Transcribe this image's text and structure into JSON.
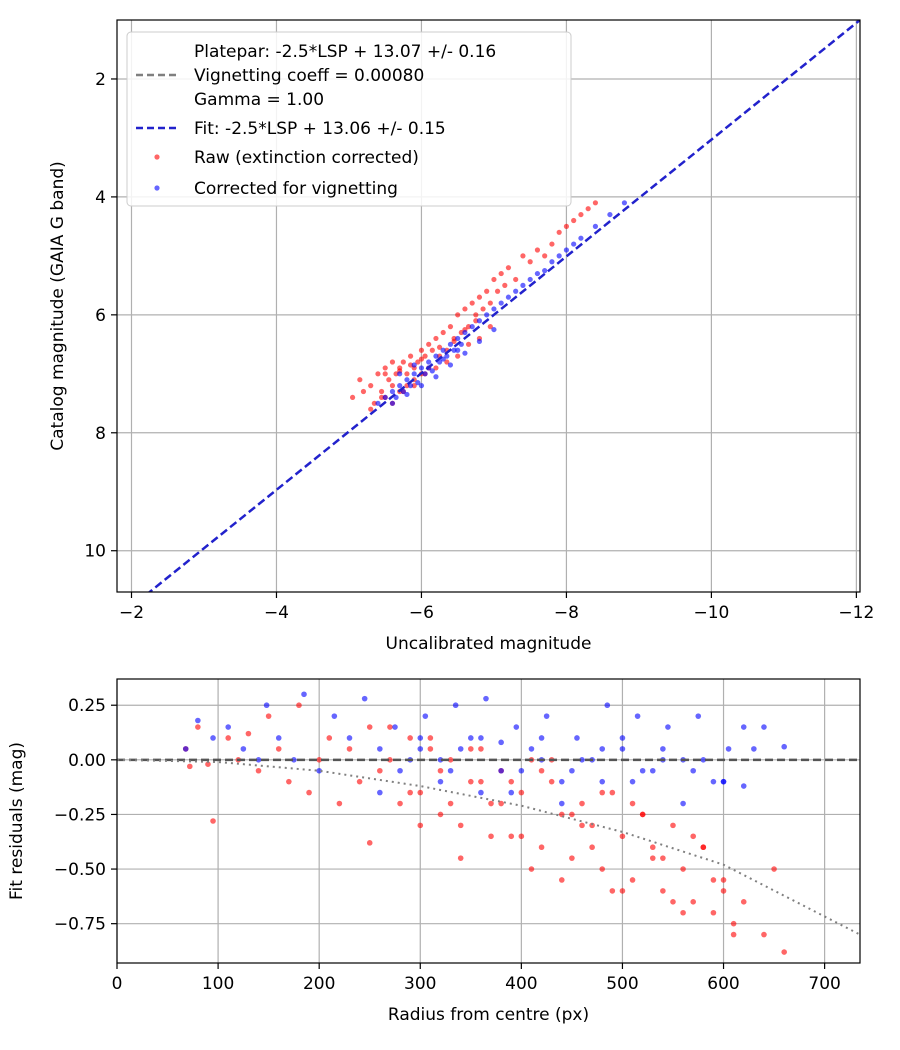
{
  "chart_data": [
    {
      "type": "scatter",
      "xlabel": "Uncalibrated magnitude",
      "ylabel": "Catalog magnitude (GAIA G band)",
      "xlim": [
        -1.8,
        -12.05
      ],
      "ylim": [
        10.7,
        1.0
      ],
      "x_inverted": true,
      "y_inverted": true,
      "xticks": [
        -2,
        -4,
        -6,
        -8,
        -10,
        -12
      ],
      "xtick_labels": [
        "−2",
        "−4",
        "−6",
        "−8",
        "−10",
        "−12"
      ],
      "yticks": [
        2,
        4,
        6,
        8,
        10
      ],
      "ytick_labels": [
        "2",
        "4",
        "6",
        "8",
        "10"
      ],
      "grid": true,
      "legend_position": "top-left",
      "legend": [
        {
          "name": "Platepar: -2.5*LSP + 13.07 +/- 0.16\nVignetting coeff = 0.00080\nGamma = 1.00",
          "style": "dashed",
          "color": "#7f7f7f"
        },
        {
          "name": "Fit: -2.5*LSP + 13.06 +/- 0.15",
          "style": "dashed",
          "color": "#2222cc"
        },
        {
          "name": "Raw (extinction corrected)",
          "style": "marker",
          "color": "#ff0000"
        },
        {
          "name": "Corrected for vignetting",
          "style": "marker",
          "color": "#0000ff"
        }
      ],
      "series": [
        {
          "kind": "line",
          "style": "dashed",
          "color": "#2222cc",
          "x": [
            -2.2,
            -12.05
          ],
          "y": [
            10.75,
            1.0
          ]
        },
        {
          "kind": "scatter",
          "color": "#ff0000",
          "x": [
            -5.05,
            -5.15,
            -5.2,
            -5.3,
            -5.35,
            -5.4,
            -5.45,
            -5.5,
            -5.5,
            -5.55,
            -5.6,
            -5.6,
            -5.65,
            -5.7,
            -5.7,
            -5.75,
            -5.8,
            -5.8,
            -5.85,
            -5.9,
            -5.9,
            -5.95,
            -6.0,
            -6.0,
            -6.05,
            -6.1,
            -6.1,
            -6.15,
            -6.2,
            -6.25,
            -6.3,
            -6.35,
            -6.4,
            -6.45,
            -6.5,
            -6.55,
            -6.6,
            -6.65,
            -6.7,
            -6.75,
            -6.8,
            -6.85,
            -6.9,
            -6.95,
            -7.0,
            -7.05,
            -7.1,
            -7.15,
            -7.2,
            -7.3,
            -7.4,
            -7.5,
            -7.6,
            -7.7,
            -7.8,
            -7.9,
            -8.0,
            -8.1,
            -8.2,
            -8.3,
            -8.4,
            -5.3,
            -5.45,
            -5.6,
            -5.75,
            -5.9,
            -6.05,
            -6.2,
            -6.35,
            -6.5,
            -6.65,
            -6.8,
            -6.95,
            -5.5,
            -5.7,
            -5.85,
            -6.0,
            -6.25,
            -6.45,
            -6.6,
            -6.75
          ],
          "y": [
            7.4,
            7.1,
            7.3,
            7.2,
            7.5,
            7.0,
            7.3,
            6.9,
            7.4,
            7.1,
            6.8,
            7.2,
            7.0,
            6.9,
            7.3,
            6.8,
            7.0,
            7.2,
            6.7,
            6.9,
            7.1,
            6.8,
            6.6,
            7.0,
            6.7,
            6.5,
            6.9,
            6.6,
            6.4,
            6.7,
            6.3,
            6.6,
            6.2,
            6.4,
            6.0,
            6.3,
            5.9,
            6.2,
            5.8,
            6.0,
            5.7,
            5.9,
            5.6,
            5.8,
            5.4,
            5.6,
            5.3,
            5.5,
            5.2,
            5.4,
            5.0,
            5.1,
            4.9,
            5.0,
            4.8,
            4.6,
            4.5,
            4.4,
            4.3,
            4.2,
            4.1,
            7.6,
            7.4,
            7.5,
            7.3,
            7.2,
            7.0,
            6.9,
            6.8,
            6.7,
            6.5,
            6.4,
            6.2,
            7.0,
            6.95,
            6.85,
            6.75,
            6.55,
            6.45,
            6.25,
            6.1
          ]
        },
        {
          "kind": "scatter",
          "color": "#0000ff",
          "x": [
            -5.4,
            -5.5,
            -5.6,
            -5.65,
            -5.7,
            -5.75,
            -5.8,
            -5.85,
            -5.9,
            -5.95,
            -6.0,
            -6.05,
            -6.1,
            -6.15,
            -6.2,
            -6.25,
            -6.3,
            -6.35,
            -6.4,
            -6.45,
            -6.5,
            -6.55,
            -6.6,
            -6.7,
            -6.8,
            -6.9,
            -7.0,
            -7.1,
            -7.2,
            -7.3,
            -7.4,
            -7.5,
            -7.6,
            -7.7,
            -7.8,
            -7.9,
            -8.0,
            -8.1,
            -8.2,
            -8.4,
            -8.6,
            -8.8,
            -5.6,
            -5.8,
            -6.0,
            -6.2,
            -6.4,
            -6.6,
            -6.8,
            -7.0,
            -5.7,
            -5.9,
            -6.1,
            -6.3,
            -6.5
          ],
          "y": [
            7.5,
            7.4,
            7.3,
            7.4,
            7.2,
            7.3,
            7.1,
            7.2,
            7.0,
            7.15,
            6.9,
            7.0,
            6.8,
            6.95,
            6.7,
            6.8,
            6.6,
            6.7,
            6.5,
            6.6,
            6.4,
            6.5,
            6.3,
            6.2,
            6.1,
            6.0,
            5.9,
            5.8,
            5.7,
            5.6,
            5.5,
            5.4,
            5.3,
            5.25,
            5.1,
            5.0,
            4.9,
            4.8,
            4.7,
            4.5,
            4.3,
            4.1,
            7.5,
            7.35,
            7.2,
            7.05,
            6.85,
            6.65,
            6.45,
            6.25,
            7.0,
            6.85,
            6.9,
            6.75,
            6.6
          ]
        }
      ]
    },
    {
      "type": "scatter",
      "xlabel": "Radius from centre (px)",
      "ylabel": "Fit residuals (mag)",
      "xlim": [
        0,
        735
      ],
      "ylim": [
        -0.93,
        0.37
      ],
      "xticks": [
        0,
        100,
        200,
        300,
        400,
        500,
        600,
        700
      ],
      "xtick_labels": [
        "0",
        "100",
        "200",
        "300",
        "400",
        "500",
        "600",
        "700"
      ],
      "yticks": [
        0.25,
        0.0,
        -0.25,
        -0.5,
        -0.75
      ],
      "ytick_labels": [
        "0.25",
        "0.00",
        "−0.25",
        "−0.50",
        "−0.75"
      ],
      "grid": true,
      "series": [
        {
          "kind": "line",
          "style": "dashed",
          "color": "#555555",
          "x": [
            0,
            735
          ],
          "y": [
            0,
            0
          ]
        },
        {
          "kind": "line",
          "style": "dotted",
          "color": "#808080",
          "x": [
            0,
            100,
            200,
            300,
            400,
            500,
            600,
            735
          ],
          "y": [
            0,
            -0.01,
            -0.05,
            -0.12,
            -0.21,
            -0.33,
            -0.48,
            -0.8
          ]
        },
        {
          "kind": "scatter",
          "color": "#ff0000",
          "x": [
            68,
            72,
            80,
            90,
            95,
            110,
            120,
            130,
            140,
            150,
            160,
            170,
            180,
            190,
            200,
            210,
            220,
            230,
            240,
            250,
            260,
            270,
            280,
            290,
            300,
            310,
            320,
            330,
            340,
            350,
            360,
            370,
            380,
            390,
            400,
            410,
            420,
            430,
            440,
            450,
            460,
            470,
            480,
            490,
            500,
            510,
            520,
            530,
            540,
            550,
            560,
            570,
            580,
            590,
            600,
            610,
            620,
            640,
            650,
            660,
            300,
            320,
            340,
            360,
            380,
            400,
            420,
            440,
            460,
            480,
            500,
            520,
            540,
            560,
            580,
            600,
            250,
            270,
            290,
            310,
            330,
            350,
            370,
            390,
            410,
            430,
            450,
            470,
            490,
            510,
            530,
            550,
            570,
            590,
            610
          ],
          "y": [
            0.05,
            -0.03,
            0.15,
            -0.02,
            -0.28,
            0.1,
            0.0,
            0.12,
            -0.05,
            0.2,
            0.05,
            -0.1,
            0.25,
            -0.15,
            0.0,
            0.1,
            -0.2,
            0.05,
            -0.1,
            0.15,
            -0.05,
            0.0,
            -0.2,
            0.1,
            -0.15,
            0.05,
            -0.25,
            0.0,
            -0.3,
            -0.1,
            0.05,
            -0.2,
            -0.05,
            -0.35,
            -0.15,
            0.0,
            -0.4,
            -0.1,
            -0.25,
            -0.45,
            -0.2,
            -0.3,
            -0.5,
            -0.15,
            -0.35,
            -0.55,
            -0.25,
            -0.4,
            -0.6,
            -0.3,
            -0.5,
            -0.65,
            -0.4,
            -0.7,
            -0.55,
            -0.75,
            -0.65,
            -0.8,
            -0.5,
            -0.88,
            -0.3,
            -0.05,
            -0.45,
            -0.1,
            -0.2,
            -0.35,
            -0.05,
            -0.55,
            -0.3,
            -0.15,
            -0.6,
            -0.25,
            -0.45,
            -0.7,
            -0.4,
            -0.6,
            -0.38,
            0.15,
            -0.15,
            0.1,
            -0.2,
            0.05,
            -0.35,
            -0.1,
            -0.5,
            0.0,
            -0.25,
            -0.4,
            -0.6,
            -0.2,
            -0.45,
            -0.65,
            -0.35,
            -0.55,
            -0.8
          ]
        },
        {
          "kind": "scatter",
          "color": "#0000ff",
          "x": [
            68,
            80,
            95,
            110,
            125,
            140,
            148,
            160,
            175,
            185,
            200,
            215,
            230,
            245,
            260,
            275,
            290,
            305,
            320,
            335,
            350,
            365,
            380,
            395,
            410,
            425,
            440,
            455,
            470,
            485,
            500,
            515,
            530,
            545,
            560,
            575,
            590,
            605,
            620,
            640,
            660,
            300,
            330,
            360,
            390,
            420,
            450,
            480,
            510,
            540,
            570,
            600,
            630,
            260,
            280,
            300,
            320,
            340,
            360,
            380,
            400,
            420,
            440,
            460,
            480,
            500,
            520,
            540,
            560,
            580,
            600,
            620
          ],
          "y": [
            0.05,
            0.18,
            0.1,
            0.15,
            0.05,
            0.0,
            0.25,
            0.1,
            0.0,
            0.3,
            -0.05,
            0.2,
            0.1,
            0.28,
            0.05,
            0.15,
            0.0,
            0.2,
            -0.1,
            0.25,
            0.1,
            0.28,
            -0.05,
            0.15,
            0.05,
            0.2,
            -0.1,
            0.1,
            0.0,
            0.25,
            0.05,
            0.2,
            -0.05,
            0.15,
            0.0,
            0.2,
            -0.1,
            0.05,
            0.15,
            0.15,
            0.06,
            0.05,
            -0.05,
            0.1,
            -0.15,
            0.0,
            -0.05,
            0.05,
            -0.1,
            0.0,
            -0.05,
            -0.1,
            0.05,
            -0.15,
            -0.05,
            0.1,
            0.0,
            0.05,
            -0.15,
            0.08,
            -0.05,
            0.1,
            -0.2,
            0.0,
            -0.1,
            0.1,
            -0.05,
            0.05,
            -0.2,
            0.0,
            -0.1,
            -0.12
          ]
        }
      ]
    }
  ]
}
